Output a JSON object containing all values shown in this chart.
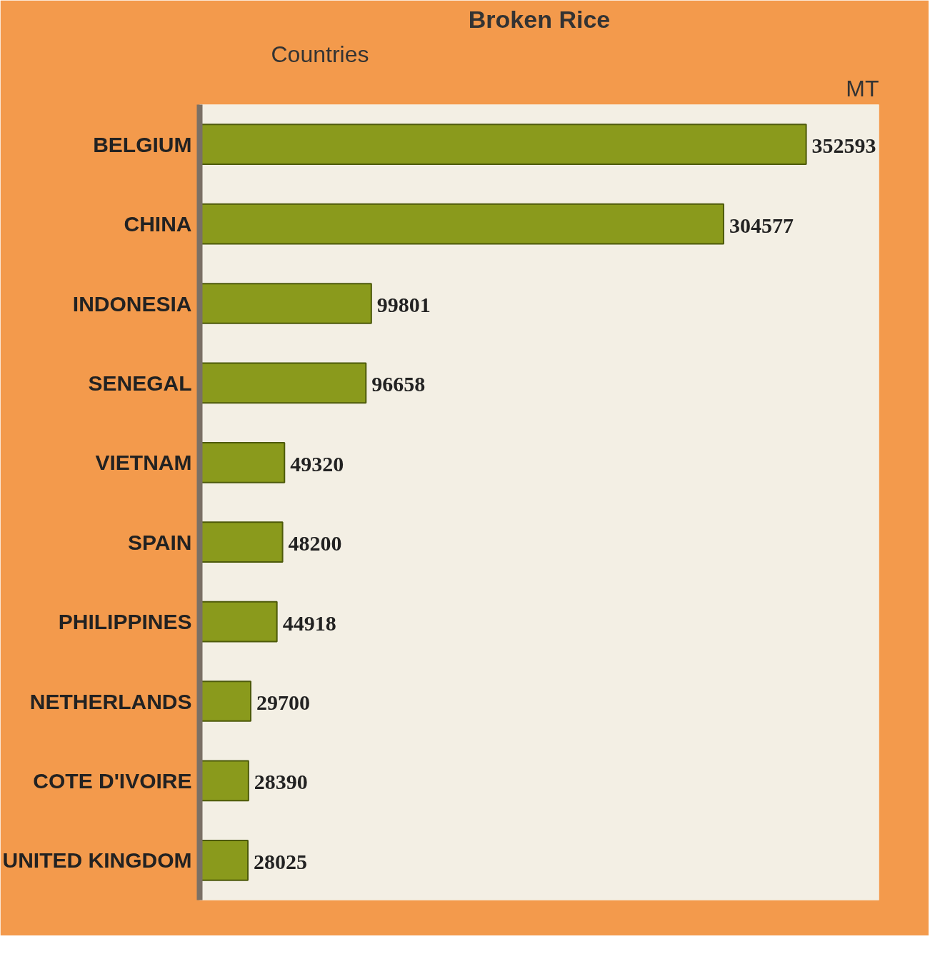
{
  "chart_data": {
    "type": "bar",
    "orientation": "horizontal",
    "title": "Broken Rice",
    "xlabel": "MT",
    "ylabel": "Countries",
    "categories": [
      "BELGIUM",
      "CHINA",
      "INDONESIA",
      "SENEGAL",
      "VIETNAM",
      "SPAIN",
      "PHILIPPINES",
      "NETHERLANDS",
      "COTE D'IVOIRE",
      "UNITED KINGDOM"
    ],
    "values": [
      352593,
      304577,
      99801,
      96658,
      49320,
      48200,
      44918,
      29700,
      28390,
      28025
    ],
    "color": "#8a9a1c",
    "data_labels": true
  }
}
